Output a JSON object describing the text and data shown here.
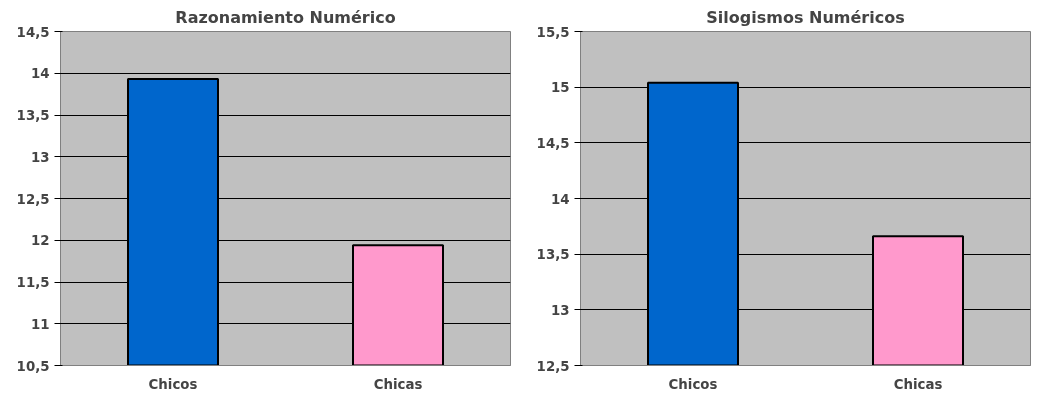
{
  "chart_data": [
    {
      "type": "bar",
      "title": "Razonamiento Numérico",
      "categories": [
        "Chicos",
        "Chicas"
      ],
      "values": [
        13.93,
        11.94
      ],
      "colors": [
        "#0066cc",
        "#ff99cc"
      ],
      "ylim": [
        10.5,
        14.5
      ],
      "yticks": [
        {
          "value": 10.5,
          "label": "10,5"
        },
        11,
        {
          "value": 11.5,
          "label": "11,5"
        },
        12,
        {
          "value": 12.5,
          "label": "12,5"
        },
        13,
        {
          "value": 13.5,
          "label": "13,5"
        },
        14,
        {
          "value": 14.5,
          "label": "14,5"
        }
      ],
      "grid": "y"
    },
    {
      "type": "bar",
      "title": "Silogismos Numéricos",
      "categories": [
        "Chicos",
        "Chicas"
      ],
      "values": [
        15.04,
        13.66
      ],
      "colors": [
        "#0066cc",
        "#ff99cc"
      ],
      "ylim": [
        12.5,
        15.5
      ],
      "yticks": [
        {
          "value": 12.5,
          "label": "12,5"
        },
        13,
        {
          "value": 13.5,
          "label": "13,5"
        },
        14,
        {
          "value": 14.5,
          "label": "14,5"
        },
        15,
        {
          "value": 15.5,
          "label": "15,5"
        }
      ],
      "grid": "y"
    }
  ]
}
